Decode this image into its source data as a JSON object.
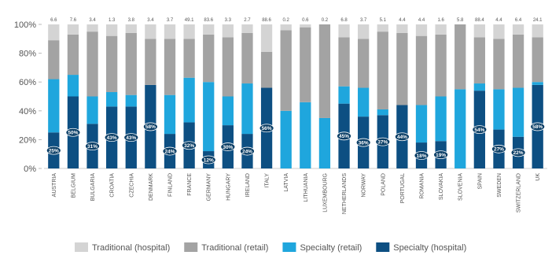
{
  "chart_data": {
    "type": "bar",
    "stacked": true,
    "ylim": [
      0,
      100
    ],
    "yticks": [
      "0%",
      "20%",
      "40%",
      "60%",
      "80%",
      "100%"
    ],
    "categories": [
      "AUSTRIA",
      "BELGIUM",
      "BULGARIA",
      "CROATIA",
      "CZECHIA",
      "DENMARK",
      "FINLAND",
      "FRANCE",
      "GERMANY",
      "HUNGARY",
      "IRELAND",
      "ITALY",
      "LATVIA",
      "LITHUANIA",
      "LUXEMBOURG",
      "NETHERLANDS",
      "NORWAY",
      "POLAND",
      "PORTUGAL",
      "ROMANIA",
      "SLOVAKIA",
      "SLOVENIA",
      "SPAIN",
      "SWEDEN",
      "SWITZERLAND",
      "UK"
    ],
    "top_labels": [
      "6.6",
      "7.6",
      "3.4",
      "1.3",
      "3.8",
      "3.4",
      "3.7",
      "49.1",
      "83.6",
      "3.3",
      "2.7",
      "88.6",
      "0.2",
      "0.6",
      "0.2",
      "6.8",
      "3.7",
      "5.1",
      "4.4",
      "4.4",
      "1.6",
      "5.8",
      "88.4",
      "4.4",
      "6.4",
      "24.1"
    ],
    "bar_labels": [
      "25%",
      "50%",
      "31%",
      "43%",
      "43%",
      "58%",
      "24%",
      "32%",
      "12%",
      "30%",
      "24%",
      "56%",
      "",
      "",
      "",
      "45%",
      "36%",
      "37%",
      "44%",
      "18%",
      "19%",
      "",
      "54%",
      "27%",
      "22%",
      "58%"
    ],
    "series": [
      {
        "name": "Specialty (hospital)",
        "color": "#0d4f82",
        "values": [
          25,
          50,
          31,
          43,
          43,
          58,
          24,
          32,
          12,
          30,
          24,
          56,
          0,
          0,
          0,
          45,
          36,
          37,
          44,
          18,
          19,
          0,
          54,
          27,
          22,
          58
        ]
      },
      {
        "name": "Specialty (retail)",
        "color": "#1fa6dd",
        "values": [
          37,
          15,
          19,
          10,
          8,
          0,
          27,
          31,
          48,
          20,
          35,
          0,
          40,
          46,
          35,
          12,
          20,
          4,
          0,
          26,
          31,
          55,
          5,
          28,
          34,
          2
        ]
      },
      {
        "name": "Traditional (retail)",
        "color": "#a3a3a3",
        "values": [
          27,
          28,
          45,
          39,
          43,
          32,
          39,
          27,
          33,
          41,
          35,
          25,
          56,
          52,
          65,
          34,
          34,
          54,
          50,
          48,
          43,
          45,
          32,
          35,
          37,
          31
        ]
      },
      {
        "name": "Traditional (hospital)",
        "color": "#d4d4d4",
        "values": [
          11,
          7,
          5,
          8,
          6,
          10,
          10,
          10,
          7,
          9,
          6,
          19,
          4,
          2,
          0,
          9,
          10,
          5,
          6,
          8,
          7,
          0,
          9,
          10,
          7,
          9
        ]
      }
    ],
    "legend_order": [
      "Traditional (hospital)",
      "Traditional (retail)",
      "Specialty (retail)",
      "Specialty (hospital)"
    ],
    "legend_position": "bottom",
    "grid": false
  }
}
